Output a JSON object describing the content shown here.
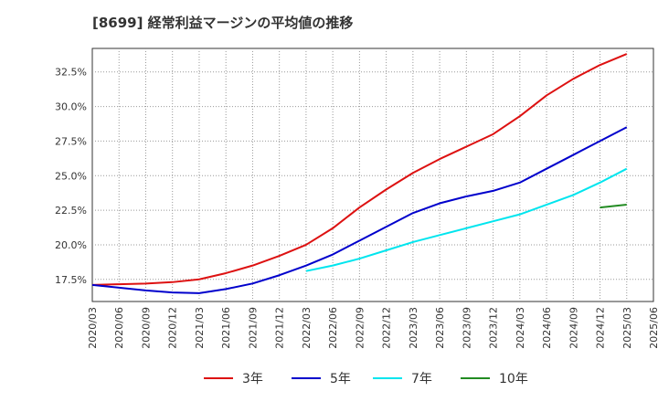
{
  "title": "[8699]  経常利益マージンの平均値の推移",
  "chart_data": {
    "type": "line",
    "title": "[8699]  経常利益マージンの平均値の推移",
    "xlabel": "",
    "ylabel": "",
    "x": [
      "2020/03",
      "2020/06",
      "2020/09",
      "2020/12",
      "2021/03",
      "2021/06",
      "2021/09",
      "2021/12",
      "2022/03",
      "2022/06",
      "2022/09",
      "2022/12",
      "2023/03",
      "2023/06",
      "2023/09",
      "2023/12",
      "2024/03",
      "2024/06",
      "2024/09",
      "2024/12",
      "2025/03",
      "2025/06"
    ],
    "y_ticks": [
      "17.5%",
      "20.0%",
      "22.5%",
      "25.0%",
      "27.5%",
      "30.0%",
      "32.5%"
    ],
    "y_tick_values": [
      17.5,
      20.0,
      22.5,
      25.0,
      27.5,
      30.0,
      32.5
    ],
    "ylim": [
      15.9,
      34.2
    ],
    "grid": true,
    "legend_position": "bottom",
    "series": [
      {
        "name": "3年",
        "color": "#dd1111",
        "values": [
          17.1,
          17.15,
          17.2,
          17.3,
          17.5,
          17.95,
          18.5,
          19.2,
          20.0,
          21.2,
          22.7,
          24.0,
          25.2,
          26.2,
          27.1,
          28.0,
          29.3,
          30.8,
          32.0,
          33.0,
          33.8,
          null
        ]
      },
      {
        "name": "5年",
        "color": "#0000cc",
        "values": [
          17.1,
          16.9,
          16.7,
          16.55,
          16.5,
          16.8,
          17.2,
          17.8,
          18.5,
          19.3,
          20.3,
          21.3,
          22.3,
          23.0,
          23.5,
          23.9,
          24.5,
          25.5,
          26.5,
          27.5,
          28.5,
          null
        ]
      },
      {
        "name": "7年",
        "color": "#00e5ee",
        "values": [
          null,
          null,
          null,
          null,
          null,
          null,
          null,
          null,
          18.1,
          18.5,
          19.0,
          19.6,
          20.2,
          20.7,
          21.2,
          21.7,
          22.2,
          22.9,
          23.6,
          24.5,
          25.5,
          null
        ]
      },
      {
        "name": "10年",
        "color": "#228b22",
        "values": [
          null,
          null,
          null,
          null,
          null,
          null,
          null,
          null,
          null,
          null,
          null,
          null,
          null,
          null,
          null,
          null,
          null,
          null,
          null,
          22.7,
          22.9,
          null
        ]
      }
    ]
  }
}
